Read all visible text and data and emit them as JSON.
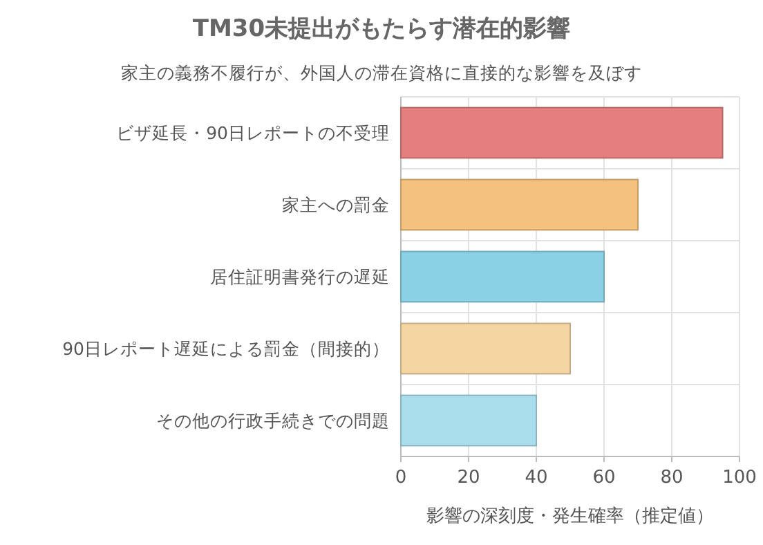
{
  "chart_data": {
    "type": "bar",
    "orientation": "horizontal",
    "title": "TM30未提出がもたらす潜在的影響",
    "subtitle": "家主の義務不履行が、外国人の滞在資格に直接的な影響を及ぼす",
    "xlabel": "影響の深刻度・発生確率（推定値）",
    "categories": [
      "ビザ延長・90日レポートの不受理",
      "家主への罰金",
      "居住証明書発行の遅延",
      "90日レポート遅延による罰金（間接的）",
      "その他の行政手続きでの問題"
    ],
    "values": [
      95,
      70,
      60,
      50,
      40
    ],
    "colors": [
      "#e57f7f",
      "#f4c27e",
      "#8ad1e6",
      "#f5d5a2",
      "#aadeec"
    ],
    "xlim": [
      0,
      100
    ],
    "xticks": [
      0,
      20,
      40,
      60,
      80,
      100
    ],
    "grid": true
  }
}
